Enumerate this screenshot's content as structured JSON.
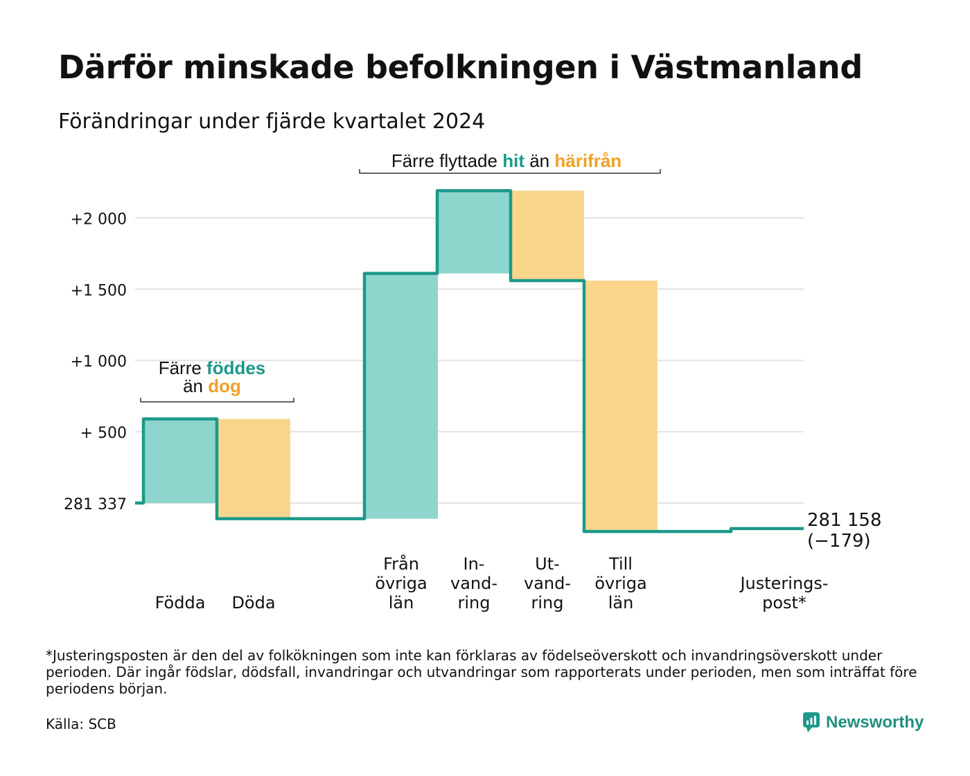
{
  "title": "Därför minskade befolkningen i Västmanland",
  "subtitle": "Förändringar under fjärde kvartalet 2024",
  "footnote": "*Justeringsposten är den del av folkökningen som inte kan förklaras av födelseöverskott och invandringsöverskott under perioden. Där ingår födslar, dödsfall, invandringar och utvandringar som rapporterats under perioden, men som inträffat före periodens början.",
  "source": "Källa: SCB",
  "brand": "Newsworthy",
  "colors": {
    "increase": "#8ed5cd",
    "decrease": "#fad68d",
    "line": "#1c998a",
    "grid": "#e2e2e2",
    "teal_text": "#1c998a",
    "orange_text": "#f0a126"
  },
  "chart_data": {
    "type": "waterfall",
    "start_value": 281337,
    "start_label": "281 337",
    "end_label": "281 158",
    "change_label": "(−179)",
    "y_ticks": [
      {
        "value": 500,
        "label": "+  500"
      },
      {
        "value": 1000,
        "label": "+1 000"
      },
      {
        "value": 1500,
        "label": "+1 500"
      },
      {
        "value": 2000,
        "label": "+2 000"
      }
    ],
    "steps": [
      {
        "name": "Födda",
        "label_lines": [
          "Födda"
        ],
        "change": 590,
        "kind": "increase"
      },
      {
        "name": "Döda",
        "label_lines": [
          "Döda"
        ],
        "change": -700,
        "kind": "decrease"
      },
      {
        "name": "Från övriga län",
        "label_lines": [
          "Från",
          "övriga",
          "län"
        ],
        "change": 1720,
        "kind": "increase"
      },
      {
        "name": "Invandring",
        "label_lines": [
          "In-",
          "vand-",
          "ring"
        ],
        "change": 580,
        "kind": "increase"
      },
      {
        "name": "Utvandring",
        "label_lines": [
          "Ut-",
          "vand-",
          "ring"
        ],
        "change": -630,
        "kind": "decrease"
      },
      {
        "name": "Till övriga län",
        "label_lines": [
          "Till",
          "övriga",
          "län"
        ],
        "change": -1760,
        "kind": "decrease"
      },
      {
        "name": "Justeringspost*",
        "label_lines": [
          "Justerings-",
          "post*"
        ],
        "change": 21,
        "kind": "adjustment"
      }
    ],
    "annotations": [
      {
        "parts": [
          {
            "text": "Färre ",
            "color": "default"
          },
          {
            "text": "föddes",
            "color": "teal"
          }
        ],
        "line2": [
          {
            "text": "än ",
            "color": "default"
          },
          {
            "text": "dog",
            "color": "orange"
          }
        ]
      },
      {
        "parts": [
          {
            "text": "Färre flyttade ",
            "color": "default"
          },
          {
            "text": "hit",
            "color": "teal"
          },
          {
            "text": " än ",
            "color": "default"
          },
          {
            "text": "härifrån",
            "color": "orange"
          }
        ]
      }
    ]
  }
}
